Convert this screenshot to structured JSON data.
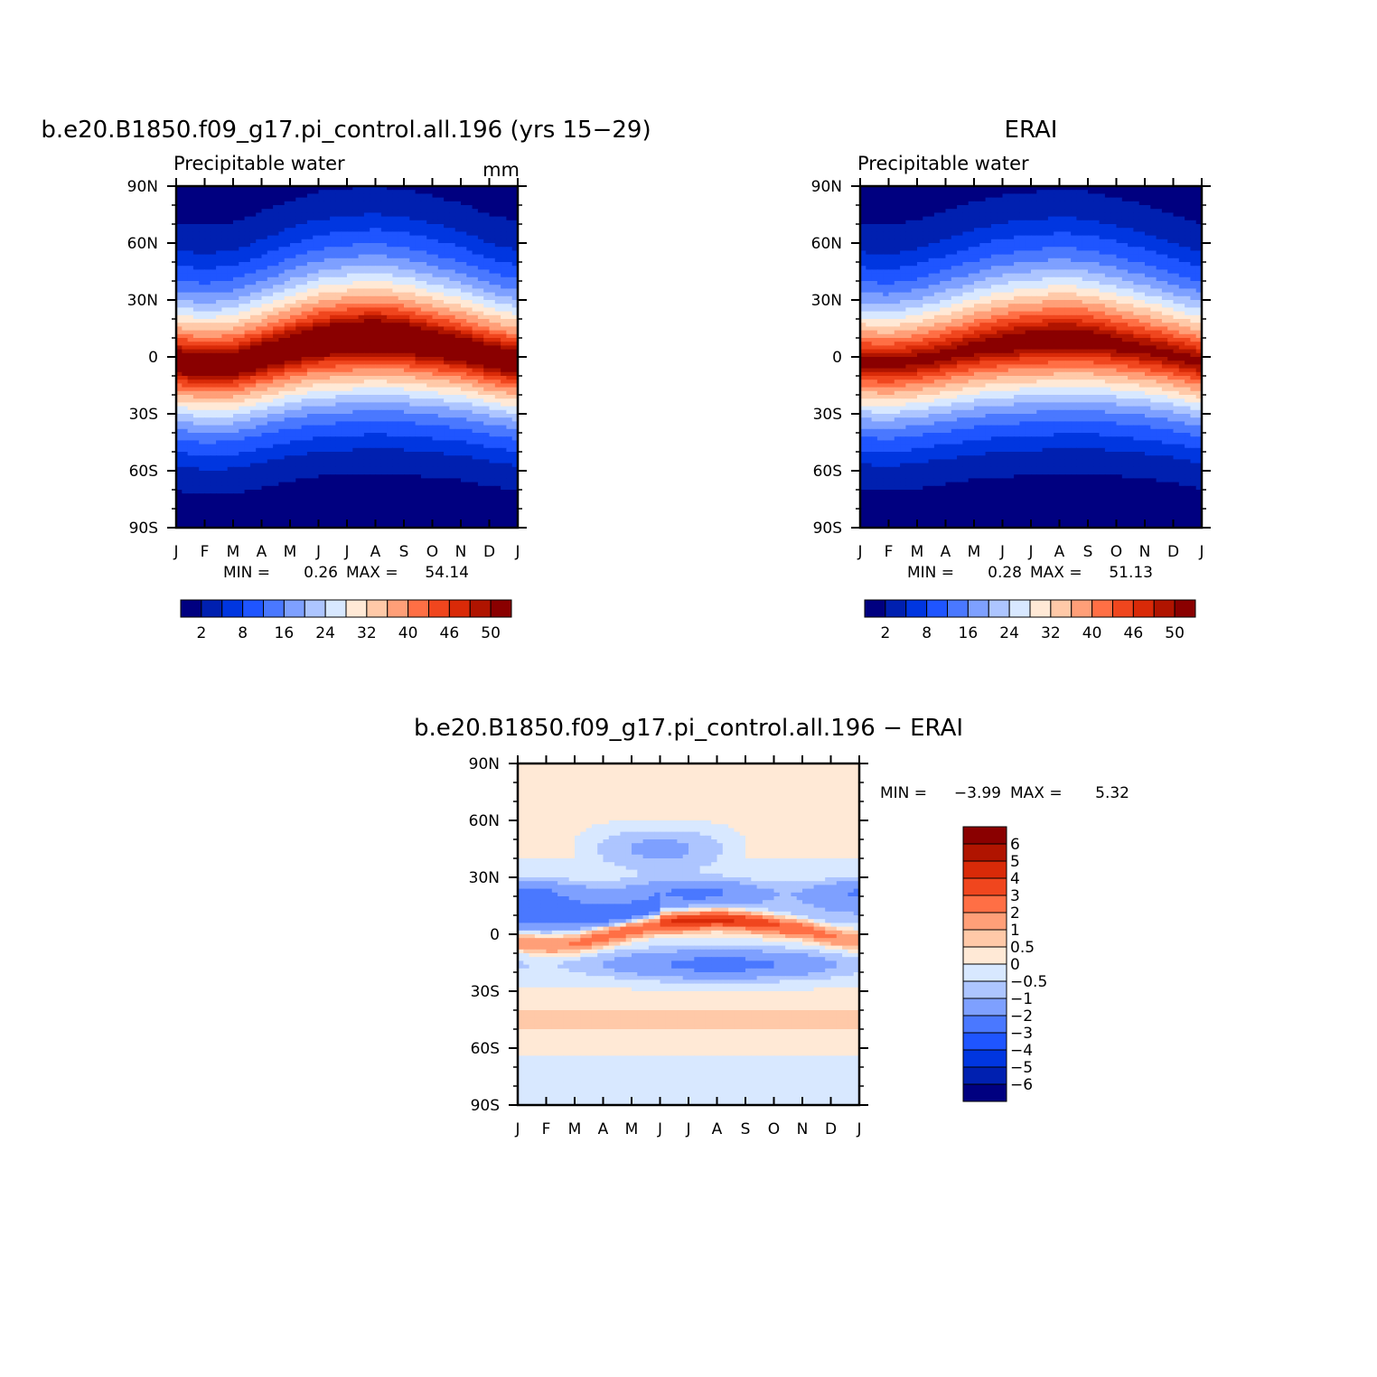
{
  "chart_data": [
    {
      "type": "heatmap",
      "title": "b.e20.B1850.f09_g17.pi_control.all.196 (yrs 15−29)",
      "subtitle": "Precipitable water",
      "units": "mm",
      "x_ticks": [
        "J",
        "F",
        "M",
        "A",
        "M",
        "J",
        "J",
        "A",
        "S",
        "O",
        "N",
        "D",
        "J"
      ],
      "y_ticks": [
        "90N",
        "60N",
        "30N",
        "0",
        "30S",
        "60S",
        "90S"
      ],
      "min_text": "MIN =",
      "min_value": "0.26",
      "max_text": "MAX =",
      "max_value": "54.14",
      "colorbar": {
        "levels": [
          "2",
          "8",
          "16",
          "24",
          "32",
          "40",
          "46",
          "50"
        ],
        "colors": [
          "#000080",
          "#0020b0",
          "#0036e0",
          "#1f55ff",
          "#4a78ff",
          "#7ea0ff",
          "#adc5ff",
          "#d8e8ff",
          "#ffe9d6",
          "#ffc9a8",
          "#ff9f78",
          "#ff6f45",
          "#f0461e",
          "#d92a08",
          "#b01400",
          "#8a0000"
        ]
      },
      "field": {
        "min": 0.26,
        "max": 54.14,
        "itcz_lat": [
          -3,
          -5,
          -4,
          0,
          4,
          7,
          8,
          9,
          8,
          6,
          4,
          0,
          -3
        ]
      }
    },
    {
      "type": "heatmap",
      "title": "ERAI",
      "subtitle": "Precipitable water",
      "x_ticks": [
        "J",
        "F",
        "M",
        "A",
        "M",
        "J",
        "J",
        "A",
        "S",
        "O",
        "N",
        "D",
        "J"
      ],
      "y_ticks": [
        "90N",
        "60N",
        "30N",
        "0",
        "30S",
        "60S",
        "90S"
      ],
      "min_text": "MIN =",
      "min_value": "0.28",
      "max_text": "MAX =",
      "max_value": "51.13",
      "colorbar": {
        "levels": [
          "2",
          "8",
          "16",
          "24",
          "32",
          "40",
          "46",
          "50"
        ],
        "colors": [
          "#000080",
          "#0020b0",
          "#0036e0",
          "#1f55ff",
          "#4a78ff",
          "#7ea0ff",
          "#adc5ff",
          "#d8e8ff",
          "#ffe9d6",
          "#ffc9a8",
          "#ff9f78",
          "#ff6f45",
          "#f0461e",
          "#d92a08",
          "#b01400",
          "#8a0000"
        ]
      },
      "field": {
        "min": 0.28,
        "max": 51.13,
        "itcz_lat": [
          -3,
          -4,
          -2,
          1,
          4,
          6,
          7,
          8,
          8,
          6,
          4,
          1,
          -3
        ]
      }
    },
    {
      "type": "heatmap",
      "title": "b.e20.B1850.f09_g17.pi_control.all.196 − ERAI",
      "x_ticks": [
        "J",
        "F",
        "M",
        "A",
        "M",
        "J",
        "J",
        "A",
        "S",
        "O",
        "N",
        "D",
        "J"
      ],
      "y_ticks": [
        "90N",
        "60N",
        "30N",
        "0",
        "30S",
        "60S",
        "90S"
      ],
      "min_text": "MIN =",
      "min_value": "−3.99",
      "max_text": "MAX =",
      "max_value": "5.32",
      "colorbar": {
        "levels": [
          "6",
          "5",
          "4",
          "3",
          "2",
          "1",
          "0.5",
          "0",
          "−0.5",
          "−1",
          "−2",
          "−3",
          "−4",
          "−5",
          "−6"
        ],
        "colors": [
          "#8a0000",
          "#b01400",
          "#d92a08",
          "#f0461e",
          "#ff6f45",
          "#ff9f78",
          "#ffc9a8",
          "#ffe9d6",
          "#d8e8ff",
          "#adc5ff",
          "#7ea0ff",
          "#4a78ff",
          "#1f55ff",
          "#0036e0",
          "#0020b0",
          "#000080"
        ]
      },
      "field": {
        "min": -3.99,
        "max": 5.32
      }
    }
  ]
}
